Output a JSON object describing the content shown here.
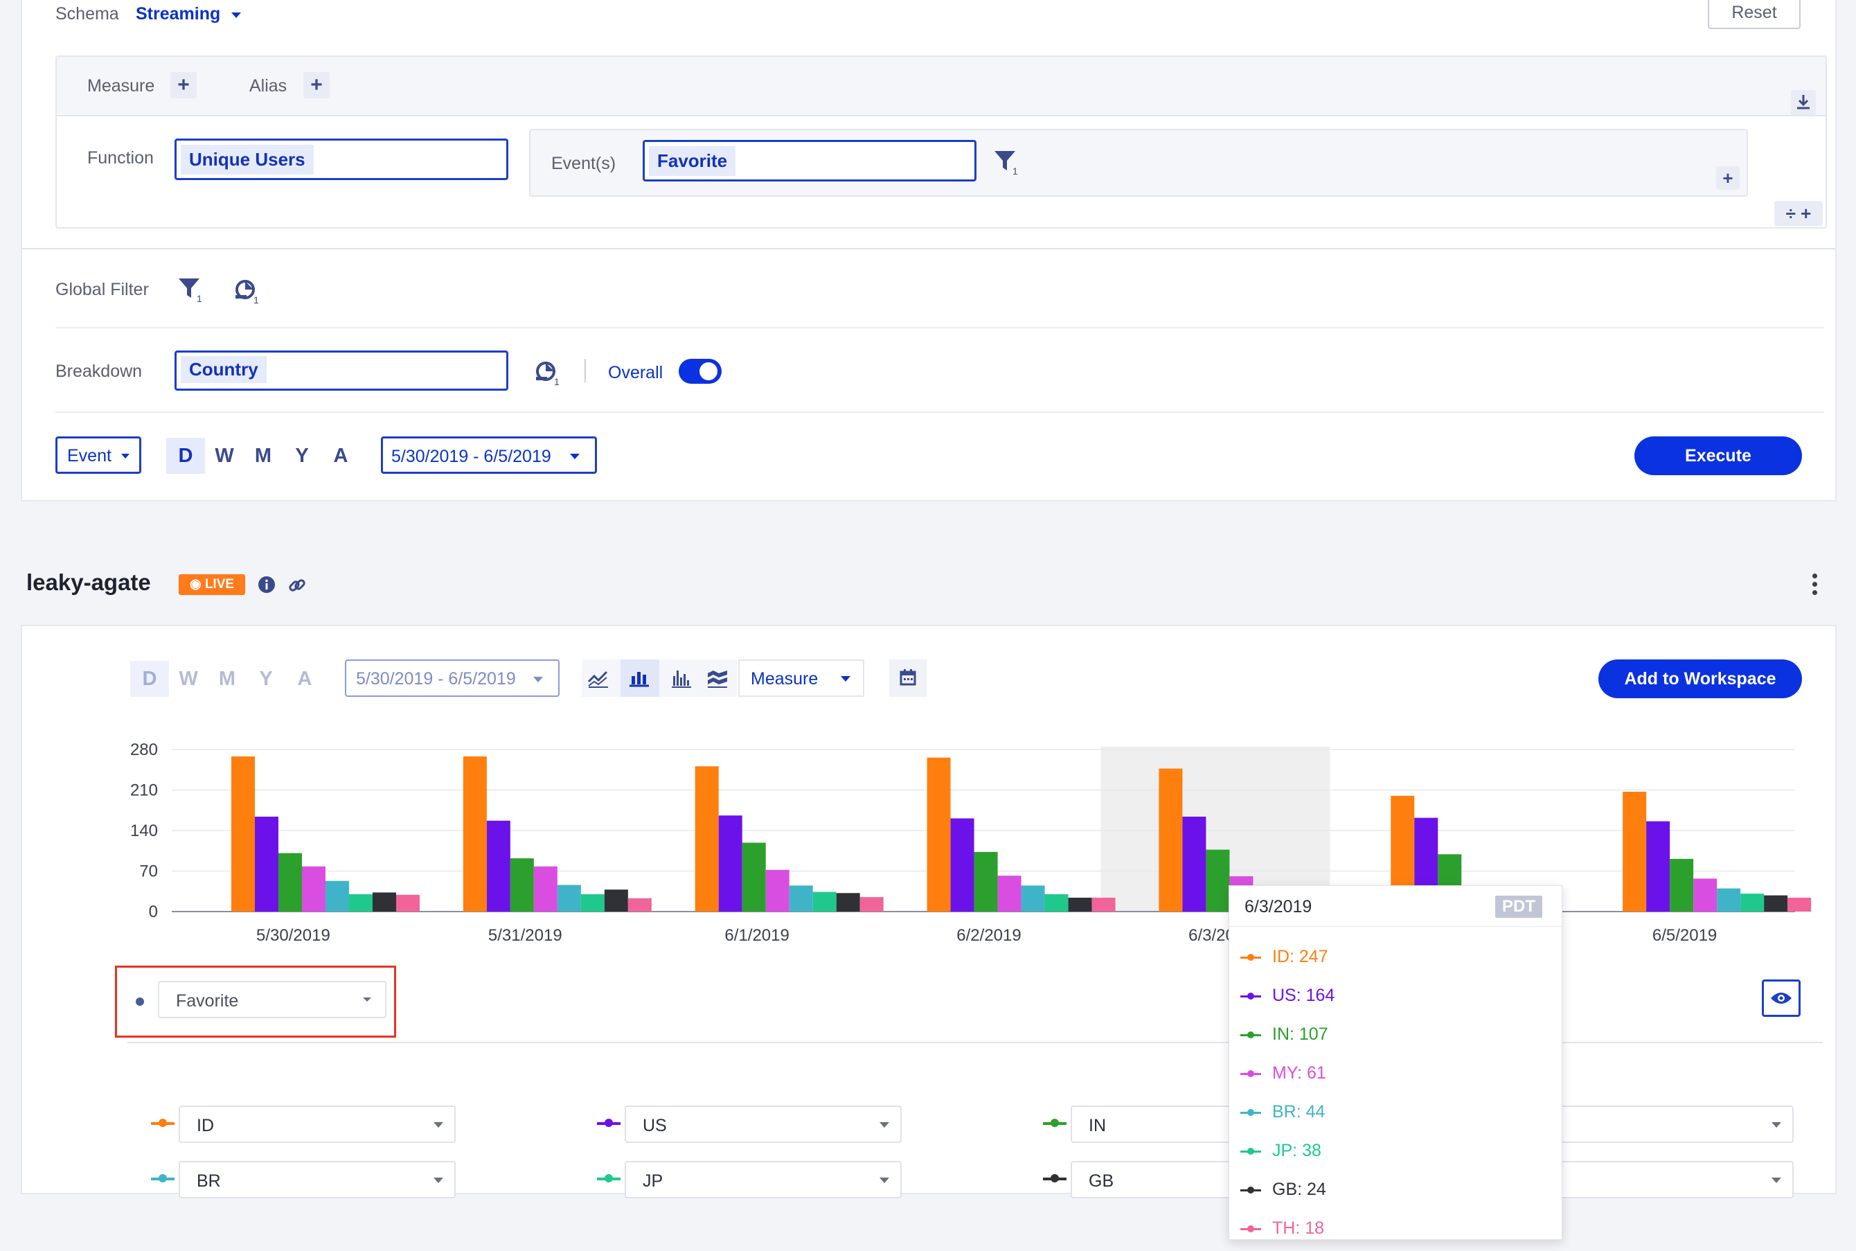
{
  "query": {
    "schema_label": "Schema",
    "schema_value": "Streaming",
    "reset_label": "Reset",
    "measure_label": "Measure",
    "alias_label": "Alias",
    "function_label": "Function",
    "function_value": "Unique Users",
    "events_label": "Event(s)",
    "events_value": "Favorite",
    "filter_count": "1",
    "global_filter_label": "Global Filter",
    "breakdown_label": "Breakdown",
    "breakdown_value": "Country",
    "overall_label": "Overall",
    "overall_on": true,
    "event_dropdown": "Event",
    "granularity": [
      "D",
      "W",
      "M",
      "Y",
      "A"
    ],
    "granularity_selected": "D",
    "date_range": "5/30/2019 - 6/5/2019",
    "execute_label": "Execute"
  },
  "report": {
    "title": "leaky-agate",
    "live_badge": "LIVE",
    "granularity": [
      "D",
      "W",
      "M",
      "Y",
      "A"
    ],
    "date_range": "5/30/2019 - 6/5/2019",
    "measure_dropdown": "Measure",
    "add_to_workspace_label": "Add to Workspace",
    "event_select": "Favorite",
    "legend": [
      {
        "name": "ID",
        "color": "#ff7f0e"
      },
      {
        "name": "US",
        "color": "#6b12ea"
      },
      {
        "name": "IN",
        "color": "#2ca02c"
      },
      {
        "name": "",
        "color": "#cccccc"
      },
      {
        "name": "BR",
        "color": "#3fb4c8"
      },
      {
        "name": "JP",
        "color": "#1fc98c"
      },
      {
        "name": "GB",
        "color": "#2f3136"
      },
      {
        "name": "",
        "color": "#cccccc"
      }
    ],
    "tooltip": {
      "date": "6/3/2019",
      "tz": "PDT",
      "rows": [
        "ID: 247",
        "US: 164",
        "IN: 107",
        "MY: 61",
        "BR: 44",
        "JP: 38",
        "GB: 24",
        "TH: 18"
      ]
    }
  },
  "chart_data": {
    "type": "bar",
    "categories": [
      "5/30/2019",
      "5/31/2019",
      "6/1/2019",
      "6/2/2019",
      "6/3/2019",
      "6/4/2019",
      "6/5/2019"
    ],
    "ylim": [
      0,
      280
    ],
    "yticks": [
      0,
      70,
      140,
      210,
      280
    ],
    "series": [
      {
        "name": "ID",
        "color": "#ff7f0e",
        "values": [
          268,
          268,
          251,
          266,
          247,
          200,
          207
        ]
      },
      {
        "name": "US",
        "color": "#6b12ea",
        "values": [
          164,
          157,
          166,
          161,
          164,
          162,
          156
        ]
      },
      {
        "name": "IN",
        "color": "#2ca02c",
        "values": [
          101,
          92,
          119,
          103,
          107,
          99,
          91
        ]
      },
      {
        "name": "MY",
        "color": "#d94ee0",
        "values": [
          78,
          78,
          72,
          62,
          61,
          0,
          57
        ]
      },
      {
        "name": "BR",
        "color": "#3fb4c8",
        "values": [
          53,
          46,
          45,
          45,
          44,
          0,
          40
        ]
      },
      {
        "name": "JP",
        "color": "#1fc98c",
        "values": [
          30,
          30,
          34,
          30,
          38,
          0,
          31
        ]
      },
      {
        "name": "GB",
        "color": "#2f3136",
        "values": [
          33,
          38,
          32,
          24,
          24,
          0,
          28
        ]
      },
      {
        "name": "TH",
        "color": "#f0649a",
        "values": [
          29,
          23,
          25,
          24,
          18,
          0,
          24
        ]
      }
    ],
    "highlighted_category": "6/3/2019"
  }
}
